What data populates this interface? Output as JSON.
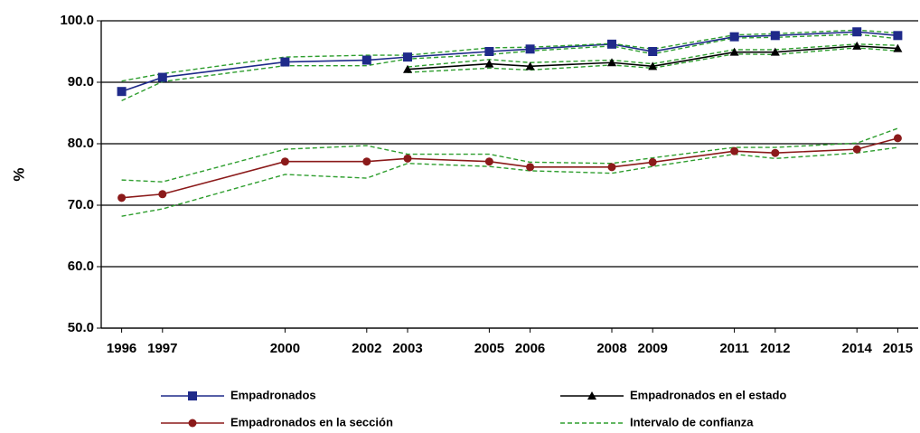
{
  "chart_data": {
    "type": "line",
    "y_label": "%",
    "x": [
      1996,
      1997,
      2000,
      2002,
      2003,
      2005,
      2006,
      2008,
      2009,
      2011,
      2012,
      2014,
      2015
    ],
    "xlim": [
      1995.5,
      2015.5
    ],
    "xticks": [
      1996,
      1997,
      2000,
      2002,
      2003,
      2005,
      2006,
      2008,
      2009,
      2011,
      2012,
      2014,
      2015
    ],
    "ylim": [
      50,
      100
    ],
    "yticks": [
      {
        "value": 50,
        "label": "50.0"
      },
      {
        "value": 60,
        "label": "60.0"
      },
      {
        "value": 70,
        "label": "70.0"
      },
      {
        "value": 80,
        "label": "80.0"
      },
      {
        "value": 90,
        "label": "90.0"
      },
      {
        "value": 100,
        "label": "100.0"
      }
    ],
    "grid": true,
    "legend": "bottom",
    "series": [
      {
        "name": "Empadronados",
        "color": "#1f2a8a",
        "marker": "square",
        "values": [
          88.5,
          90.8,
          93.3,
          93.6,
          94.1,
          95.0,
          95.4,
          96.2,
          95.0,
          97.4,
          97.6,
          98.2,
          97.6
        ]
      },
      {
        "name": "Empadronados en el estado",
        "color": "#000000",
        "marker": "triangle",
        "values": [
          null,
          null,
          null,
          null,
          92.1,
          93.0,
          92.6,
          93.2,
          92.6,
          94.9,
          94.9,
          95.9,
          95.5
        ]
      },
      {
        "name": "Empadronados en la sección",
        "color": "#8b1a1a",
        "marker": "circle",
        "values": [
          71.2,
          71.8,
          77.1,
          77.1,
          77.6,
          77.1,
          76.2,
          76.2,
          77.0,
          78.8,
          78.5,
          79.1,
          80.9
        ]
      },
      {
        "name": "Intervalo de confianza",
        "color": "#2e9e2e",
        "dashed": true,
        "lines": [
          [
            90.2,
            91.4,
            94.1,
            94.4,
            94.4,
            95.6,
            95.7,
            96.3,
            95.4,
            97.7,
            97.9,
            98.5,
            98.0
          ],
          [
            87.0,
            90.1,
            92.7,
            92.7,
            93.8,
            94.5,
            95.1,
            95.9,
            94.6,
            97.2,
            97.3,
            97.8,
            97.1
          ],
          [
            null,
            null,
            null,
            null,
            92.5,
            93.7,
            93.2,
            93.6,
            93.0,
            95.3,
            95.3,
            96.2,
            96.0
          ],
          [
            null,
            null,
            null,
            null,
            91.6,
            92.3,
            92.0,
            92.8,
            92.3,
            94.6,
            94.5,
            95.6,
            95.1
          ],
          [
            74.1,
            73.8,
            79.1,
            79.7,
            78.3,
            78.3,
            77.0,
            76.8,
            77.7,
            79.4,
            79.4,
            80.1,
            82.5
          ],
          [
            68.2,
            69.4,
            75.0,
            74.4,
            76.8,
            76.3,
            75.6,
            75.2,
            76.3,
            78.3,
            77.6,
            78.5,
            79.4
          ]
        ]
      }
    ]
  }
}
